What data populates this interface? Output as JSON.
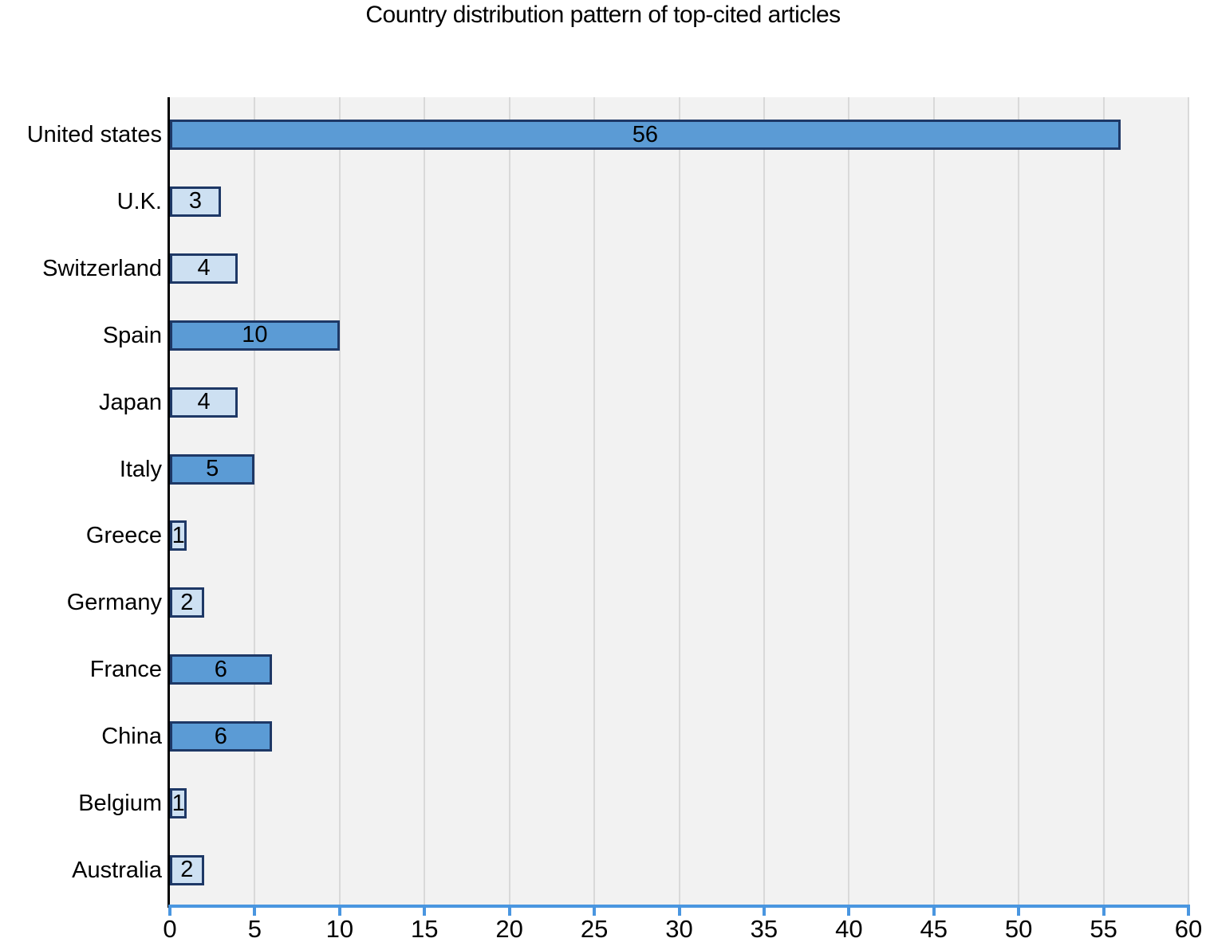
{
  "title": "Country distribution pattern of top-cited articles",
  "chart_data": {
    "type": "bar",
    "orientation": "horizontal",
    "title": "Country distribution pattern of top-cited articles",
    "categories": [
      "United states",
      "U.K.",
      "Switzerland",
      "Spain",
      "Japan",
      "Italy",
      "Greece",
      "Germany",
      "France",
      "China",
      "Belgium",
      "Australia"
    ],
    "values": [
      56,
      3,
      4,
      10,
      4,
      5,
      1,
      2,
      6,
      6,
      1,
      2
    ],
    "value_labels": [
      "56",
      "3",
      "4",
      "10",
      "4",
      "5",
      "1",
      "2",
      "6",
      "6",
      "1",
      "2"
    ],
    "bar_fills": [
      "#5b9bd5",
      "#cde0f2",
      "#cde0f2",
      "#5b9bd5",
      "#cde0f2",
      "#5b9bd5",
      "#cde0f2",
      "#cde0f2",
      "#5b9bd5",
      "#5b9bd5",
      "#cde0f2",
      "#cde0f2"
    ],
    "xlabel": "",
    "ylabel": "",
    "xlim": [
      0,
      60
    ],
    "x_ticks": [
      0,
      5,
      10,
      15,
      20,
      25,
      30,
      35,
      40,
      45,
      50,
      55,
      60
    ],
    "grid": "vertical gridlines every 5 units",
    "legend_position": "none",
    "colors": {
      "bar_medium": "#5b9bd5",
      "bar_light": "#cde0f2",
      "bar_border": "#1e3866",
      "plot_background": "#f2f2f2",
      "gridline": "#d9d9d9",
      "x_axis_line": "#4a96e0",
      "y_axis_line": "#000000",
      "text": "#000000"
    }
  }
}
